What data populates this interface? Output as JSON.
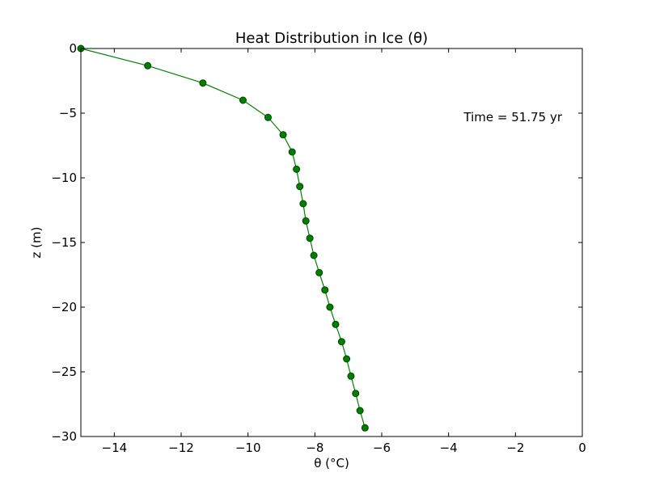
{
  "chart_data": {
    "type": "line",
    "title": "Heat Distribution in Ice (θ)",
    "xlabel": "θ (°C)",
    "ylabel": "z (m)",
    "xlim": [
      -15,
      0
    ],
    "ylim": [
      -30,
      0
    ],
    "xticks": [
      -14,
      -12,
      -10,
      -8,
      -6,
      -4,
      -2,
      0
    ],
    "yticks": [
      0,
      -5,
      -10,
      -15,
      -20,
      -25,
      -30
    ],
    "grid": false,
    "annotation": "Time = 51.75 yr",
    "line_color": "#008000",
    "marker_color": "#008000",
    "marker_edge_color": "#004000",
    "series": [
      {
        "x": [
          -15.0,
          -13.0,
          -11.35,
          -10.15,
          -9.4,
          -8.95,
          -8.68,
          -8.55,
          -8.45,
          -8.35,
          -8.27,
          -8.15,
          -8.03,
          -7.87,
          -7.7,
          -7.55,
          -7.38,
          -7.2,
          -7.05,
          -6.92,
          -6.78,
          -6.65,
          -6.5
        ],
        "y": [
          0.0,
          -1.33,
          -2.67,
          -4.0,
          -5.33,
          -6.67,
          -8.0,
          -9.33,
          -10.67,
          -12.0,
          -13.33,
          -14.67,
          -16.0,
          -17.33,
          -18.67,
          -20.0,
          -21.33,
          -22.67,
          -24.0,
          -25.33,
          -26.67,
          -28.0,
          -29.33
        ]
      }
    ]
  }
}
